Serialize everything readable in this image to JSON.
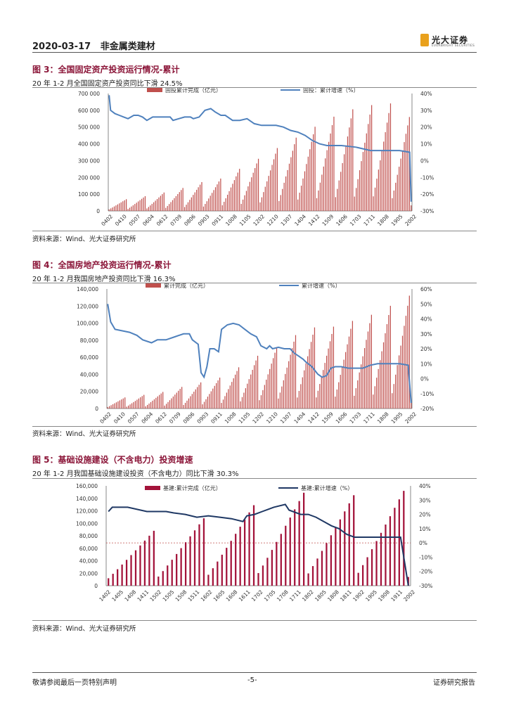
{
  "header": {
    "date": "2020-03-17",
    "category": "非金属类建材",
    "brand": "光大证券",
    "brand_en": "EVERBRIGHT SECURITIES"
  },
  "figures": [
    {
      "title": "图 3：全国固定资产投资运行情况-累计",
      "subtitle": "20 年 1-2 月全国固定资产投资同比下滑 24.5%",
      "source": "资料来源：Wind、光大证券研究所"
    },
    {
      "title": "图 4：全国房地产投资运行情况-累计",
      "subtitle": "20 年 1-2 月我国房地产投资同比下滑 16.3%",
      "source": "资料来源：Wind、光大证券研究所"
    },
    {
      "title": "图 5：基础设施建设（不含电力）投资增速",
      "subtitle": "20 年 1-2 月我国基础设施建设投资（不含电力）同比下滑 30.3%",
      "source": "资料来源：Wind、光大证券研究所"
    }
  ],
  "footer": {
    "left": "敬请参阅最后一页特别声明",
    "page": "-5-",
    "right": "证券研究报告"
  },
  "chart_data": [
    {
      "type": "bar",
      "title": "全国固定资产投资运行情况-累计",
      "bar_series_name": "固投累计完成（亿元）",
      "line_series_name": "固投：累计增速（%）",
      "y_left_ticks": [
        "700 000",
        "600 000",
        "500 000",
        "400 000",
        "300 000",
        "200 000",
        "100 000",
        "0"
      ],
      "y_right_ticks": [
        "40%",
        "30%",
        "20%",
        "10%",
        "0%",
        "-10%",
        "-20%",
        "-30%"
      ],
      "ylim_left": [
        0,
        700000
      ],
      "ylim_right": [
        -30,
        40
      ],
      "x_ticks": [
        "0402",
        "0410",
        "0507",
        "0604",
        "0612",
        "0709",
        "0806",
        "0903",
        "0911",
        "1008",
        "1105",
        "1202",
        "1210",
        "1307",
        "1404",
        "1412",
        "1509",
        "1606",
        "1703",
        "1711",
        "1808",
        "1905",
        "2002"
      ],
      "bar_color": "#c0504d",
      "line_color": "#4f81bd",
      "annual_peaks": [
        70000,
        88000,
        110000,
        137000,
        172000,
        193000,
        251000,
        311000,
        375000,
        437000,
        502000,
        562000,
        606000,
        631000,
        641000,
        560000
      ],
      "year_start_months": 2,
      "last_value": 33323,
      "growth_points": [
        [
          0,
          39
        ],
        [
          1,
          30
        ],
        [
          4,
          28
        ],
        [
          7,
          27
        ],
        [
          10,
          26
        ],
        [
          13,
          25
        ],
        [
          17,
          27
        ],
        [
          20,
          27
        ],
        [
          23,
          26
        ],
        [
          26,
          24
        ],
        [
          30,
          26
        ],
        [
          34,
          26
        ],
        [
          37,
          26
        ],
        [
          42,
          26
        ],
        [
          44,
          24
        ],
        [
          48,
          25
        ],
        [
          52,
          26
        ],
        [
          56,
          26
        ],
        [
          58,
          25
        ],
        [
          62,
          26
        ],
        [
          66,
          30
        ],
        [
          70,
          31
        ],
        [
          73,
          29
        ],
        [
          77,
          27
        ],
        [
          80,
          27
        ],
        [
          85,
          24
        ],
        [
          90,
          24
        ],
        [
          95,
          25
        ],
        [
          100,
          22
        ],
        [
          105,
          21
        ],
        [
          110,
          21
        ],
        [
          115,
          21
        ],
        [
          120,
          20
        ],
        [
          125,
          18
        ],
        [
          130,
          17
        ],
        [
          135,
          15
        ],
        [
          140,
          12
        ],
        [
          145,
          10
        ],
        [
          150,
          9
        ],
        [
          160,
          9
        ],
        [
          170,
          8
        ],
        [
          180,
          6
        ],
        [
          190,
          6
        ],
        [
          200,
          6
        ],
        [
          207,
          5
        ],
        [
          208,
          -24.5
        ]
      ]
    },
    {
      "type": "bar",
      "title": "全国房地产投资运行情况-累计",
      "bar_series_name": "累计完成（亿元）",
      "line_series_name": "累计增速（%）",
      "y_left_ticks": [
        "140,000",
        "120,000",
        "100,000",
        "80,000",
        "60,000",
        "40,000",
        "20,000",
        "0"
      ],
      "y_right_ticks": [
        "60%",
        "50%",
        "40%",
        "30%",
        "20%",
        "10%",
        "0%",
        "-10%",
        "-20%"
      ],
      "ylim_left": [
        0,
        140000
      ],
      "ylim_right": [
        -20,
        60
      ],
      "x_ticks": [
        "0402",
        "0410",
        "0507",
        "0604",
        "0612",
        "0709",
        "0806",
        "0903",
        "0911",
        "1008",
        "1105",
        "1202",
        "1210",
        "1307",
        "1404",
        "1412",
        "1509",
        "1606",
        "1703",
        "1711",
        "1808",
        "1905",
        "2002"
      ],
      "bar_color": "#c0504d",
      "line_color": "#4f81bd",
      "annual_peaks": [
        13000,
        16000,
        19400,
        25300,
        30600,
        36200,
        48300,
        61800,
        71800,
        86000,
        95000,
        95900,
        102600,
        109800,
        120300,
        132200
      ],
      "year_start_months": 2,
      "last_value": 10115,
      "growth_points": [
        [
          0,
          50
        ],
        [
          2,
          38
        ],
        [
          5,
          33
        ],
        [
          10,
          32
        ],
        [
          15,
          31
        ],
        [
          20,
          29
        ],
        [
          24,
          26
        ],
        [
          30,
          24
        ],
        [
          34,
          26
        ],
        [
          40,
          26
        ],
        [
          46,
          28
        ],
        [
          52,
          30
        ],
        [
          56,
          30
        ],
        [
          58,
          26
        ],
        [
          62,
          23
        ],
        [
          64,
          4
        ],
        [
          66,
          1
        ],
        [
          68,
          8
        ],
        [
          70,
          20
        ],
        [
          73,
          20
        ],
        [
          76,
          18
        ],
        [
          78,
          33
        ],
        [
          82,
          36
        ],
        [
          86,
          37
        ],
        [
          90,
          36
        ],
        [
          94,
          33
        ],
        [
          98,
          30
        ],
        [
          102,
          28
        ],
        [
          105,
          22
        ],
        [
          109,
          20
        ],
        [
          111,
          22
        ],
        [
          113,
          20
        ],
        [
          117,
          21
        ],
        [
          121,
          20
        ],
        [
          125,
          20
        ],
        [
          128,
          17
        ],
        [
          131,
          15
        ],
        [
          134,
          13
        ],
        [
          136,
          11
        ],
        [
          140,
          8
        ],
        [
          144,
          3
        ],
        [
          147,
          1
        ],
        [
          150,
          2
        ],
        [
          153,
          7
        ],
        [
          156,
          8
        ],
        [
          160,
          8
        ],
        [
          165,
          7
        ],
        [
          170,
          7
        ],
        [
          175,
          7
        ],
        [
          180,
          9
        ],
        [
          185,
          10
        ],
        [
          190,
          10
        ],
        [
          195,
          10
        ],
        [
          200,
          10
        ],
        [
          206,
          9
        ],
        [
          208,
          -16.3
        ]
      ]
    },
    {
      "type": "bar",
      "title": "基础设施建设（不含电力）投资增速",
      "bar_series_name": "基建:累计完成（亿元）",
      "line_series_name": "基建:累计增速（%）",
      "y_left_ticks": [
        "160,000",
        "140,000",
        "120,000",
        "100,000",
        "80,000",
        "60,000",
        "40,000",
        "20,000",
        "0"
      ],
      "y_right_ticks": [
        "40%",
        "30%",
        "20%",
        "10%",
        "0%",
        "-10%",
        "-20%",
        "-30%"
      ],
      "ylim_left": [
        0,
        160000
      ],
      "ylim_right": [
        -30,
        40
      ],
      "x_ticks": [
        "1402",
        "1405",
        "1408",
        "1411",
        "1502",
        "1505",
        "1508",
        "1511",
        "1602",
        "1605",
        "1608",
        "1611",
        "1702",
        "1705",
        "1708",
        "1711",
        "1802",
        "1805",
        "1808",
        "1811",
        "1902",
        "1905",
        "1908",
        "1911",
        "2002"
      ],
      "bar_color": "#a3133a",
      "line_color": "#1f3864",
      "annual_peaks": [
        88000,
        108000,
        129000,
        149000,
        145000,
        152000
      ],
      "year_start_months": 2,
      "last_value": 14000,
      "growth_points": [
        [
          0,
          22
        ],
        [
          1,
          25
        ],
        [
          5,
          25
        ],
        [
          10,
          22
        ],
        [
          15,
          22
        ],
        [
          17,
          21
        ],
        [
          20,
          20
        ],
        [
          23,
          18
        ],
        [
          26,
          19
        ],
        [
          29,
          18
        ],
        [
          32,
          17
        ],
        [
          35,
          15
        ],
        [
          36,
          19
        ],
        [
          38,
          20
        ],
        [
          40,
          22
        ],
        [
          43,
          25
        ],
        [
          46,
          27
        ],
        [
          47,
          23
        ],
        [
          50,
          20
        ],
        [
          52,
          20
        ],
        [
          54,
          18
        ],
        [
          56,
          15
        ],
        [
          58,
          12
        ],
        [
          60,
          10
        ],
        [
          62,
          6
        ],
        [
          64,
          4
        ],
        [
          65,
          4
        ],
        [
          68,
          4
        ],
        [
          70,
          4
        ],
        [
          72,
          4
        ],
        [
          74,
          4
        ],
        [
          75,
          4
        ],
        [
          76,
          4
        ],
        [
          78,
          -30
        ]
      ]
    }
  ]
}
